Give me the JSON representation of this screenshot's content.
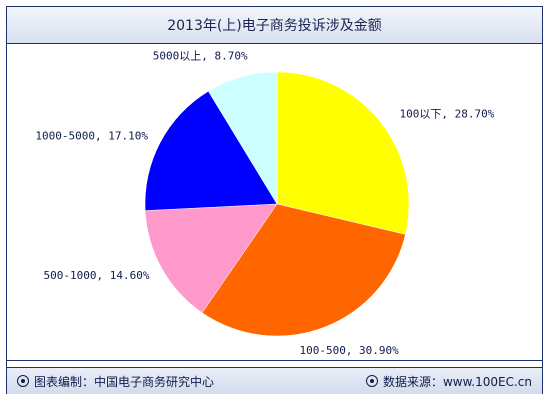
{
  "title": "2013年(上)电子商务投诉涉及金额",
  "footer": {
    "left": "图表编制：中国电子商务研究中心",
    "right": "数据来源：www.100EC.cn"
  },
  "chart_data": {
    "type": "pie",
    "title": "2013年(上)电子商务投诉涉及金额",
    "slices": [
      {
        "label": "100以下",
        "value": 28.7,
        "display": "100以下, 28.70%",
        "color": "#ffff00"
      },
      {
        "label": "100-500",
        "value": 30.9,
        "display": "100-500, 30.90%",
        "color": "#ff6600"
      },
      {
        "label": "500-1000",
        "value": 14.6,
        "display": "500-1000, 14.60%",
        "color": "#ff99cc"
      },
      {
        "label": "1000-5000",
        "value": 17.1,
        "display": "1000-5000, 17.10%",
        "color": "#0000ff"
      },
      {
        "label": "5000以上",
        "value": 8.7,
        "display": "5000以上, 8.70%",
        "color": "#ccffff"
      }
    ],
    "legend": "none"
  }
}
